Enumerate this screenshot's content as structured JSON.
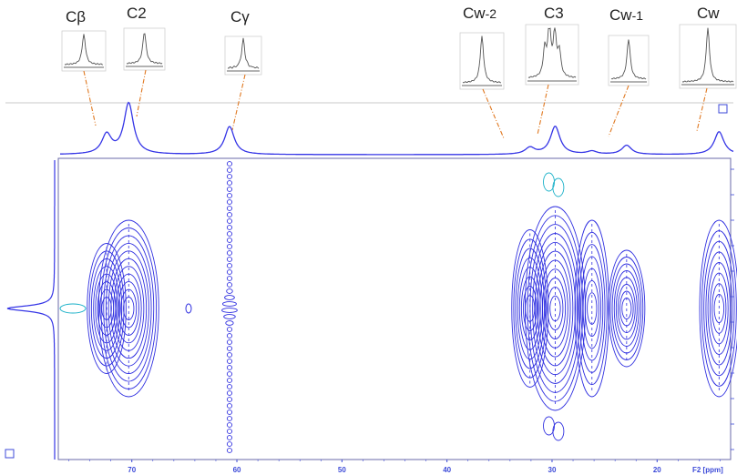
{
  "colors": {
    "spectrum": "#3535e6",
    "contour_blue": "#3030e0",
    "contour_cyan": "#19b0c8",
    "axis": "#3c4ad8",
    "leader": "#e07820",
    "inset_line": "#555555",
    "separator": "#c8c8c8"
  },
  "axis": {
    "unit_label": "F2 [ppm]"
  },
  "peak_labels": [
    {
      "id": "cbeta",
      "base": "Cβ",
      "sub": ""
    },
    {
      "id": "c2",
      "base": "C2",
      "sub": ""
    },
    {
      "id": "cgamma",
      "base": "Cγ",
      "sub": ""
    },
    {
      "id": "cw2",
      "base": "Cw",
      "sub": "-2"
    },
    {
      "id": "c3",
      "base": "C3",
      "sub": ""
    },
    {
      "id": "cw1",
      "base": "Cw",
      "sub": "-1"
    },
    {
      "id": "cw",
      "base": "Cw",
      "sub": ""
    }
  ],
  "chart_data": {
    "type": "heatmap",
    "title": "",
    "xlabel": "F2 [ppm]",
    "ylabel": "",
    "xlim": [
      77,
      13
    ],
    "x_ticks": [
      70,
      60,
      50,
      40,
      30,
      20
    ],
    "top_projection": {
      "peaks": [
        {
          "ppm": 72.4,
          "height": 0.38
        },
        {
          "ppm": 70.3,
          "height": 1.0
        },
        {
          "ppm": 60.7,
          "height": 0.55
        },
        {
          "ppm": 32.1,
          "height": 0.13
        },
        {
          "ppm": 29.7,
          "height": 0.55
        },
        {
          "ppm": 26.2,
          "height": 0.06
        },
        {
          "ppm": 22.9,
          "height": 0.18
        },
        {
          "ppm": 14.1,
          "height": 0.45
        }
      ]
    },
    "contour_columns": [
      {
        "ppm": 72.4,
        "intensity": 0.55,
        "extent": 0.45
      },
      {
        "ppm": 70.3,
        "intensity": 1.0,
        "extent": 0.62
      },
      {
        "ppm": 60.7,
        "intensity": 0.8,
        "extent": 1.0
      },
      {
        "ppm": 32.1,
        "intensity": 0.5,
        "extent": 0.55
      },
      {
        "ppm": 29.7,
        "intensity": 1.0,
        "extent": 0.72
      },
      {
        "ppm": 26.2,
        "intensity": 0.45,
        "extent": 0.62
      },
      {
        "ppm": 22.9,
        "intensity": 0.5,
        "extent": 0.4
      },
      {
        "ppm": 14.1,
        "intensity": 0.55,
        "extent": 0.62
      }
    ]
  }
}
